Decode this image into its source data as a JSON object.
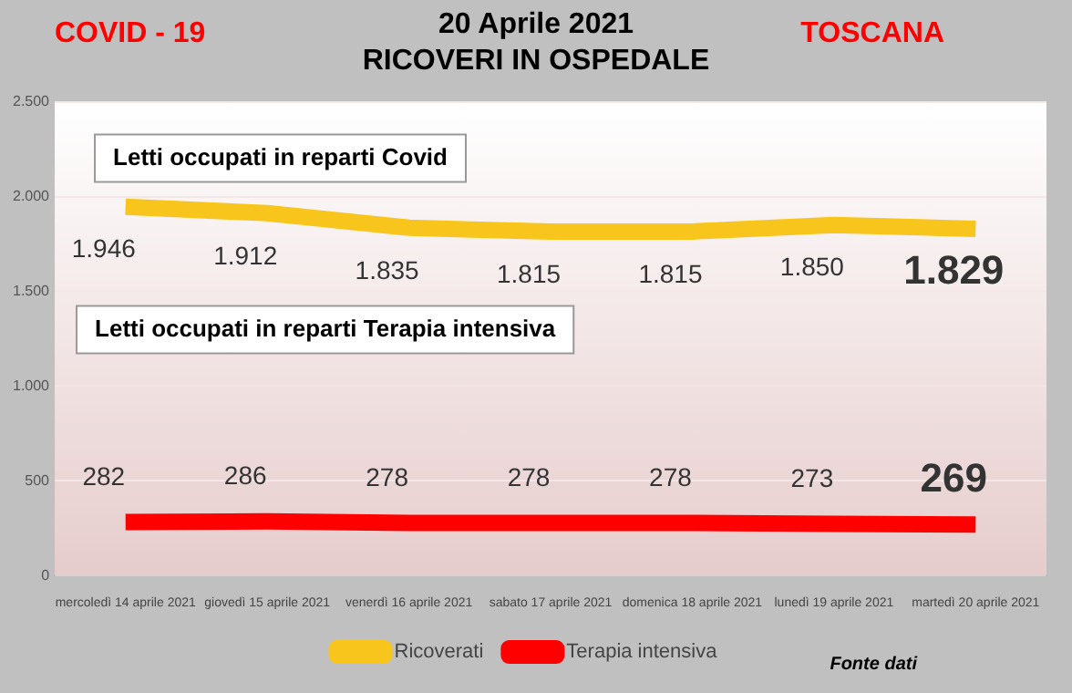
{
  "chart_data": {
    "type": "line",
    "title": "20 Aprile 2021",
    "subtitle": "RICOVERI IN OSPEDALE",
    "annotations": [
      "COVID - 19",
      "TOSCANA",
      "Letti occupati in reparti Covid",
      "Letti occupati in reparti Terapia intensiva",
      "Fonte dati"
    ],
    "categories": [
      "mercoledì 14 aprile 2021",
      "giovedì 15 aprile 2021",
      "venerdì 16 aprile 2021",
      "sabato 17 aprile 2021",
      "domenica 18 aprile 2021",
      "lunedì 19 aprile 2021",
      "martedì 20 aprile 2021"
    ],
    "series": [
      {
        "name": "Ricoverati",
        "color": "#f8c51c",
        "values": [
          1946,
          1912,
          1835,
          1815,
          1815,
          1850,
          1829
        ],
        "value_labels": [
          "1.946",
          "1.912",
          "1.835",
          "1.815",
          "1.815",
          "1.850",
          "1.829"
        ]
      },
      {
        "name": "Terapia intensiva",
        "color": "#ff0000",
        "values": [
          282,
          286,
          278,
          278,
          278,
          273,
          269
        ],
        "value_labels": [
          "282",
          "286",
          "278",
          "278",
          "278",
          "273",
          "269"
        ]
      }
    ],
    "ylim": [
      0,
      2500
    ],
    "yticks": [
      {
        "value": 0,
        "label": "0"
      },
      {
        "value": 500,
        "label": "500"
      },
      {
        "value": 1000,
        "label": "1.000"
      },
      {
        "value": 1500,
        "label": "1.500"
      },
      {
        "value": 2000,
        "label": "2.000"
      },
      {
        "value": 2500,
        "label": "2.500"
      }
    ],
    "grid": "y",
    "legend": "bottom",
    "marker": "none",
    "line_style": "solid"
  }
}
